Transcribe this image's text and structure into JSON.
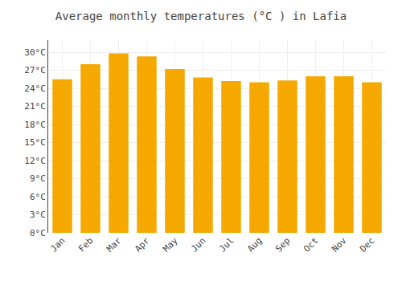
{
  "chart_data": {
    "type": "bar",
    "title": "Average monthly temperatures (°C ) in Lafia",
    "categories": [
      "Jan",
      "Feb",
      "Mar",
      "Apr",
      "May",
      "Jun",
      "Jul",
      "Aug",
      "Sep",
      "Oct",
      "Nov",
      "Dec"
    ],
    "values": [
      25.5,
      28.0,
      29.8,
      29.3,
      27.2,
      25.8,
      25.2,
      25.0,
      25.3,
      26.0,
      26.0,
      25.0
    ],
    "color": "#F5A800",
    "ylim": [
      0,
      32
    ],
    "yticks": [
      {
        "value": 0,
        "label": "0°C"
      },
      {
        "value": 3,
        "label": "3°C"
      },
      {
        "value": 6,
        "label": "6°C"
      },
      {
        "value": 9,
        "label": "9°C"
      },
      {
        "value": 12,
        "label": "12°C"
      },
      {
        "value": 15,
        "label": "15°C"
      },
      {
        "value": 18,
        "label": "18°C"
      },
      {
        "value": 21,
        "label": "21°C"
      },
      {
        "value": 24,
        "label": "24°C"
      },
      {
        "value": 27,
        "label": "27°C"
      },
      {
        "value": 30,
        "label": "30°C"
      }
    ],
    "grid": true
  }
}
